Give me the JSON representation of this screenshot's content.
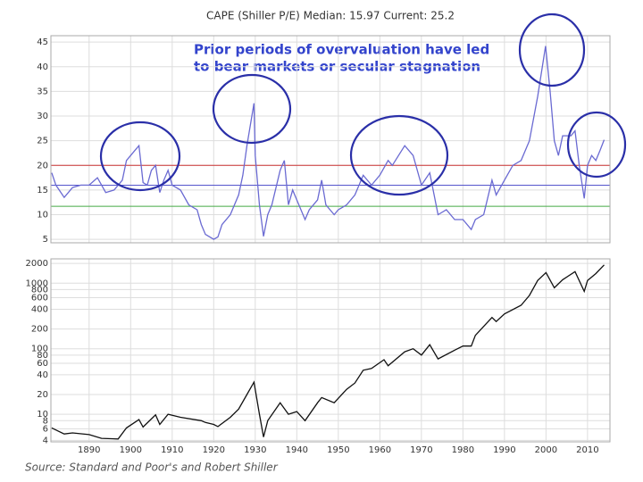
{
  "source": "Source: Standard and Poor's and Robert Shiller",
  "chart_data": [
    {
      "type": "line",
      "title": "CAPE (Shiller P/E)     Median: 15.97  Current: 25.2",
      "annotation": [
        "Prior periods of overvaluation have led",
        "to bear markets or secular stagnation"
      ],
      "xlim": [
        1880.8,
        2015.4
      ],
      "xticks": [
        1890,
        1900,
        1910,
        1920,
        1930,
        1940,
        1950,
        1960,
        1970,
        1980,
        1990,
        2000,
        2010
      ],
      "ylim": [
        4.3,
        46.3
      ],
      "yticks": [
        5,
        10,
        15,
        20,
        25,
        30,
        35,
        40,
        45
      ],
      "grid": true,
      "reference_lines": [
        {
          "value": 20,
          "color": "#cc3333"
        },
        {
          "value": 15.97,
          "color": "#5555cc"
        },
        {
          "value": 11.7,
          "color": "#44aa44"
        }
      ],
      "x": [
        1881,
        1882,
        1884,
        1886,
        1888,
        1890,
        1892,
        1894,
        1896,
        1898,
        1899,
        1901,
        1902,
        1903,
        1904,
        1905,
        1906,
        1907,
        1908,
        1909,
        1910,
        1912,
        1914,
        1916,
        1917,
        1918,
        1920,
        1921,
        1922,
        1924,
        1926,
        1927,
        1928,
        1929.7,
        1930,
        1931,
        1932,
        1933,
        1934,
        1936,
        1937,
        1938,
        1939,
        1940,
        1942,
        1943,
        1945,
        1946,
        1947,
        1949,
        1950,
        1952,
        1954,
        1956,
        1958,
        1960,
        1962,
        1963,
        1966,
        1968,
        1970,
        1972,
        1974,
        1976,
        1978,
        1980,
        1982,
        1983,
        1985,
        1987,
        1988,
        1990,
        1992,
        1994,
        1996,
        1998,
        1999.9,
        2001,
        2002,
        2003,
        2004,
        2006,
        2007,
        2008,
        2009.2,
        2010,
        2011,
        2012,
        2013,
        2014
      ],
      "series": [
        {
          "name": "CAPE",
          "color": "#6a6ad2",
          "values": [
            18.5,
            16,
            13.5,
            15.5,
            16,
            16,
            17.5,
            14.5,
            15,
            17,
            21,
            23,
            24,
            16.5,
            16,
            19,
            20,
            14.5,
            17,
            19,
            16,
            15,
            12,
            11,
            8,
            6,
            5,
            5.5,
            8,
            10,
            14,
            18,
            24,
            32.6,
            22,
            12,
            5.6,
            10,
            12,
            19,
            21,
            12,
            15,
            13,
            9,
            11,
            13,
            17,
            12,
            10,
            11,
            12,
            14,
            18,
            16,
            18,
            21,
            20,
            24,
            22,
            16,
            18.5,
            10,
            11,
            9,
            9,
            7,
            9,
            10,
            17,
            14,
            17,
            20,
            21,
            25,
            34,
            44.2,
            35,
            25,
            22,
            26,
            26,
            27,
            20,
            13.3,
            20,
            22,
            21,
            23,
            25.2
          ]
        }
      ]
    },
    {
      "type": "line",
      "log_y": true,
      "xlim": [
        1880.8,
        2015.4
      ],
      "xticks": [
        1890,
        1900,
        1910,
        1920,
        1930,
        1940,
        1950,
        1960,
        1970,
        1980,
        1990,
        2000,
        2010
      ],
      "ylim": [
        3.8,
        2350
      ],
      "yticks": [
        4,
        6,
        8,
        10,
        20,
        40,
        60,
        80,
        100,
        200,
        400,
        600,
        800,
        1000,
        2000
      ],
      "grid": true,
      "x": [
        1881,
        1884,
        1886,
        1890,
        1893,
        1897,
        1899,
        1902,
        1903,
        1906,
        1907,
        1909,
        1912,
        1917,
        1918,
        1920,
        1921,
        1924,
        1926,
        1928,
        1929.7,
        1931,
        1932,
        1933,
        1936,
        1938,
        1940,
        1942,
        1945,
        1946,
        1949,
        1952,
        1954,
        1956,
        1958,
        1961,
        1962,
        1966,
        1968,
        1970,
        1972,
        1974,
        1978,
        1980,
        1982,
        1983,
        1987,
        1988,
        1990,
        1994,
        1996,
        1998,
        2000,
        2002,
        2004,
        2007,
        2009.2,
        2010,
        2012,
        2014
      ],
      "series": [
        {
          "name": "S&P 500",
          "color": "#111111",
          "values": [
            6.2,
            5,
            5.2,
            4.9,
            4.3,
            4.2,
            6.2,
            8.3,
            6.4,
            9.8,
            7,
            10,
            9,
            8,
            7.5,
            7,
            6.5,
            9,
            12,
            20,
            31,
            10,
            4.5,
            8,
            15,
            10,
            11,
            8,
            15,
            18,
            15,
            24,
            30,
            47,
            50,
            68,
            55,
            90,
            100,
            80,
            115,
            70,
            95,
            110,
            110,
            160,
            300,
            260,
            340,
            460,
            650,
            1100,
            1450,
            850,
            1130,
            1500,
            750,
            1100,
            1400,
            1900
          ]
        }
      ]
    }
  ]
}
